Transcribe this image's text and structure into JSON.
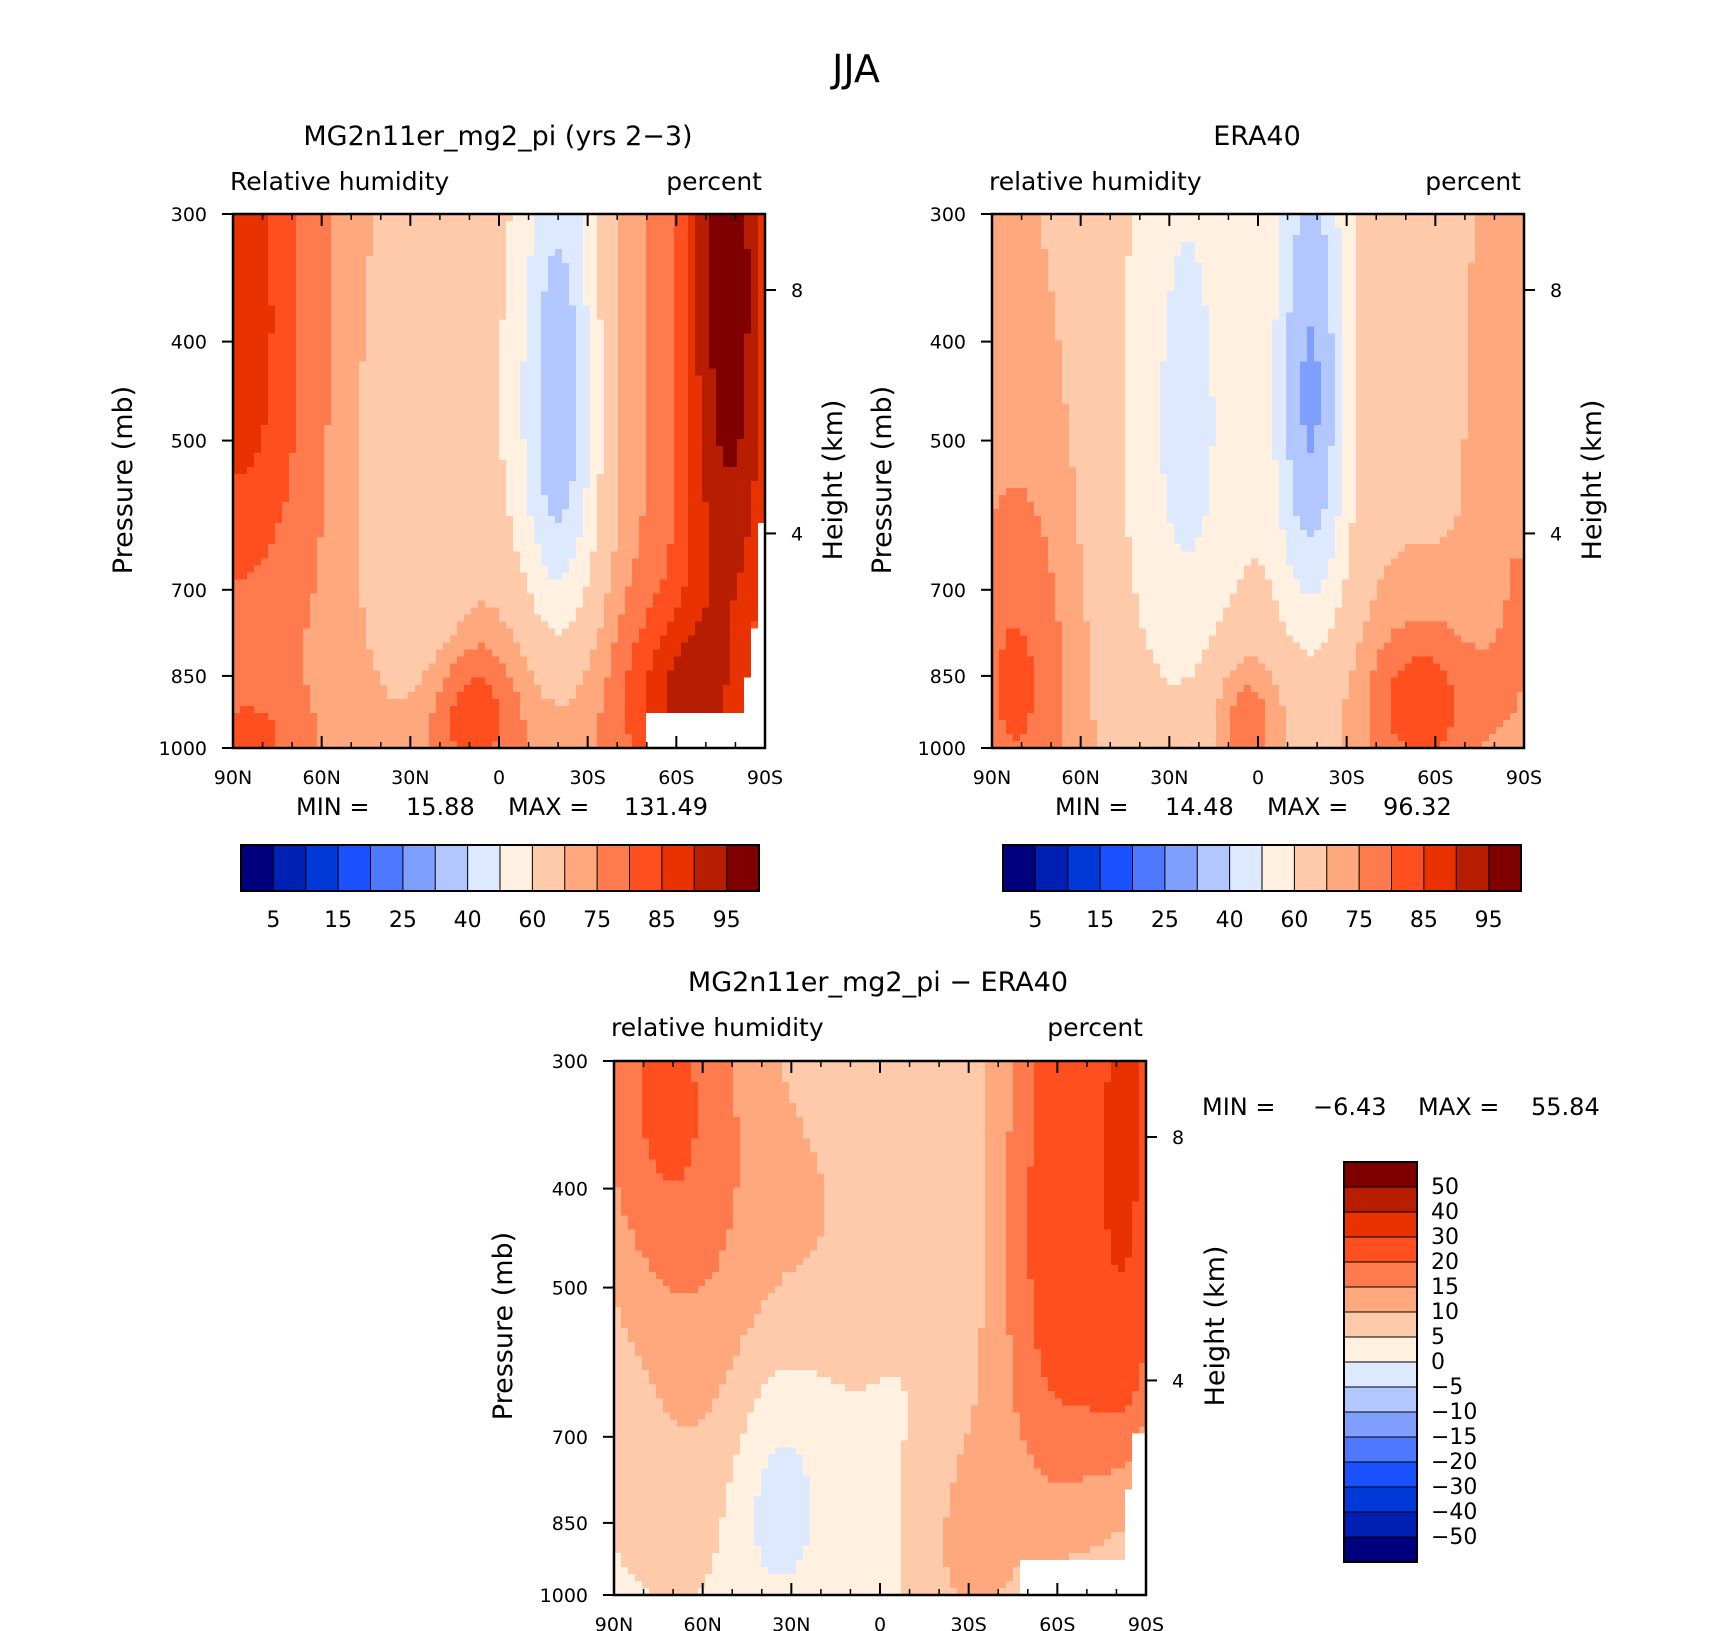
{
  "page_title": "JJA",
  "colors": {
    "rh_levels": [
      "#00007f",
      "#0020b4",
      "#0039d8",
      "#1a52ff",
      "#4d78ff",
      "#7f9fff",
      "#b2c6ff",
      "#dce9ff",
      "#fff0df",
      "#ffcaaa",
      "#ffa77d",
      "#ff7b4d",
      "#ff4f1e",
      "#e83200",
      "#b71d00",
      "#7f0000"
    ],
    "diff_levels": [
      "#00007f",
      "#0020b4",
      "#0039d8",
      "#1a52ff",
      "#4d78ff",
      "#7f9fff",
      "#b2c6ff",
      "#dce9ff",
      "#fff0df",
      "#ffcaaa",
      "#ffa77d",
      "#ff7b4d",
      "#ff4f1e",
      "#e83200",
      "#b71d00",
      "#7f0000"
    ]
  },
  "chart_data": [
    {
      "type": "heatmap",
      "title": "MG2n11er_mg2_pi (yrs 2−3)",
      "left_label": "Relative humidity",
      "right_label": "percent",
      "ylabel": "Pressure (mb)",
      "ylabel_right": "Height (km)",
      "x_ticks": [
        "90N",
        "60N",
        "30N",
        "0",
        "30S",
        "60S",
        "90S"
      ],
      "y_ticks": [
        "300",
        "400",
        "500",
        "700",
        "850",
        "1000"
      ],
      "y_right_ticks": [
        "8",
        "4"
      ],
      "ylim": [
        1000,
        300
      ],
      "stats": {
        "min_label": "MIN =",
        "min": "15.88",
        "max_label": "MAX =",
        "max": "131.49"
      },
      "colorbar_labels": [
        "5",
        "15",
        "25",
        "40",
        "60",
        "75",
        "85",
        "95"
      ],
      "field": "model",
      "mask": [
        {
          "lat_from": -50,
          "lat_to": -90,
          "p_from": 925,
          "p_to": 1000
        },
        {
          "lat_from": -83,
          "lat_to": -90,
          "p_from": 850,
          "p_to": 925
        },
        {
          "lat_from": -85,
          "lat_to": -90,
          "p_from": 760,
          "p_to": 850
        },
        {
          "lat_from": -87,
          "lat_to": -90,
          "p_from": 690,
          "p_to": 760
        },
        {
          "lat_from": -88.5,
          "lat_to": -90,
          "p_from": 600,
          "p_to": 690
        }
      ]
    },
    {
      "type": "heatmap",
      "title": "ERA40",
      "left_label": "relative humidity",
      "right_label": "percent",
      "ylabel": "Pressure (mb)",
      "ylabel_right": "Height (km)",
      "x_ticks": [
        "90N",
        "60N",
        "30N",
        "0",
        "30S",
        "60S",
        "90S"
      ],
      "y_ticks": [
        "300",
        "400",
        "500",
        "700",
        "850",
        "1000"
      ],
      "y_right_ticks": [
        "8",
        "4"
      ],
      "ylim": [
        1000,
        300
      ],
      "stats": {
        "min_label": "MIN =",
        "min": "14.48",
        "max_label": "MAX =",
        "max": "96.32"
      },
      "colorbar_labels": [
        "5",
        "15",
        "25",
        "40",
        "60",
        "75",
        "85",
        "95"
      ],
      "field": "era",
      "mask": []
    },
    {
      "type": "heatmap",
      "title": "MG2n11er_mg2_pi − ERA40",
      "left_label": "relative humidity",
      "right_label": "percent",
      "ylabel": "Pressure (mb)",
      "ylabel_right": "Height (km)",
      "x_ticks": [
        "90N",
        "60N",
        "30N",
        "0",
        "30S",
        "60S",
        "90S"
      ],
      "y_ticks": [
        "300",
        "400",
        "500",
        "700",
        "850",
        "1000"
      ],
      "y_right_ticks": [
        "8",
        "4"
      ],
      "ylim": [
        1000,
        300
      ],
      "stats": {
        "min_label": "MIN =",
        "min": "−6.43",
        "max_label": "MAX =",
        "max": "55.84"
      },
      "colorbar_labels": [
        "50",
        "40",
        "30",
        "20",
        "15",
        "10",
        "5",
        "0",
        "−5",
        "−10",
        "−15",
        "−20",
        "−30",
        "−40",
        "−50"
      ],
      "field": "diff",
      "mask": [
        {
          "lat_from": -48,
          "lat_to": -90,
          "p_from": 925,
          "p_to": 1000
        },
        {
          "lat_from": -82,
          "lat_to": -90,
          "p_from": 880,
          "p_to": 925
        },
        {
          "lat_from": -84,
          "lat_to": -90,
          "p_from": 790,
          "p_to": 880
        },
        {
          "lat_from": -86,
          "lat_to": -90,
          "p_from": 700,
          "p_to": 790
        }
      ]
    }
  ]
}
